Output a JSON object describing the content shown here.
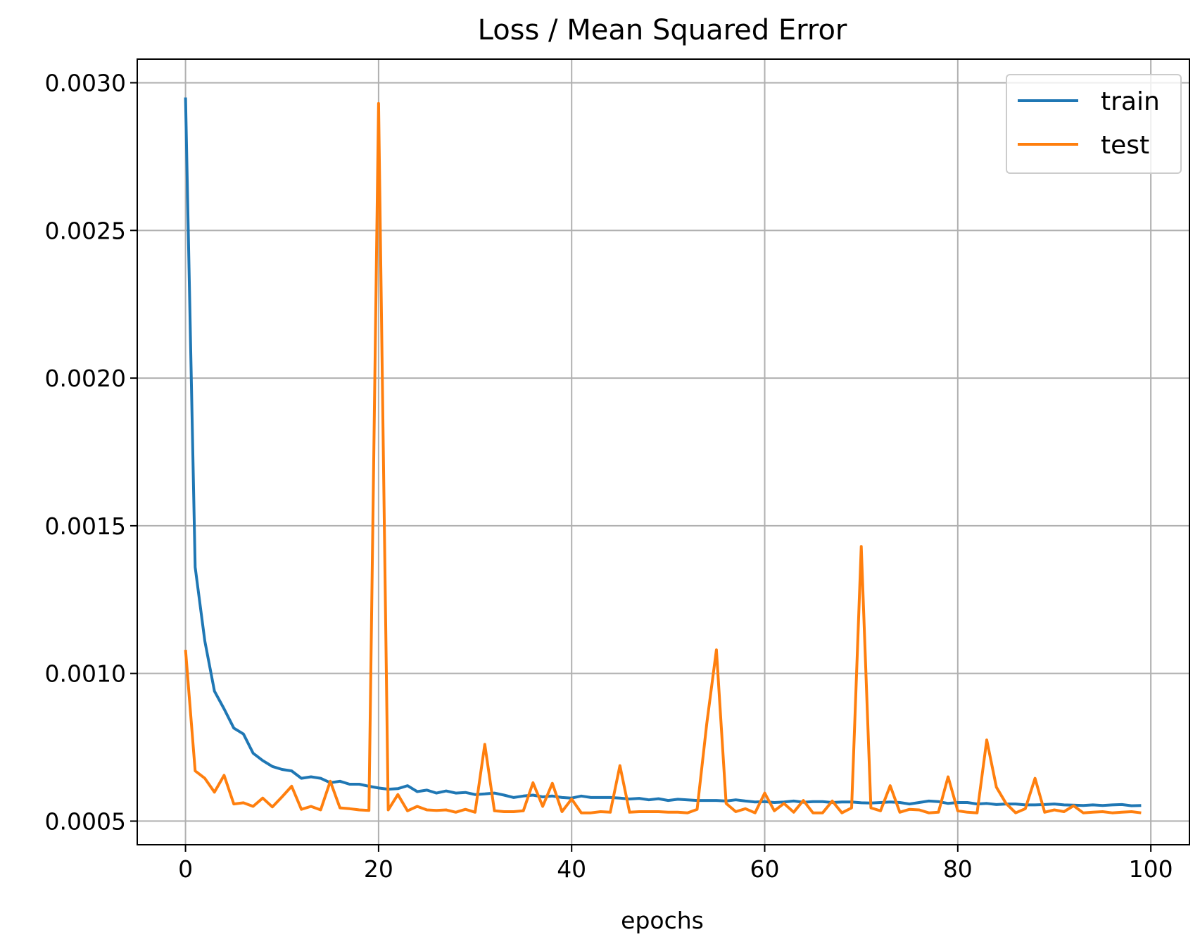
{
  "chart_data": {
    "type": "line",
    "title": "Loss / Mean Squared Error",
    "xlabel": "epochs",
    "ylabel": "",
    "xlim": [
      -5,
      104
    ],
    "ylim": [
      0.00042,
      0.00308
    ],
    "xticks": [
      0,
      20,
      40,
      60,
      80,
      100
    ],
    "xtick_labels": [
      "0",
      "20",
      "40",
      "60",
      "80",
      "100"
    ],
    "yticks": [
      0.0005,
      0.001,
      0.0015,
      0.002,
      0.0025,
      0.003
    ],
    "ytick_labels": [
      "0.0005",
      "0.0010",
      "0.0015",
      "0.0020",
      "0.0025",
      "0.0030"
    ],
    "grid": true,
    "legend_position": "top-right",
    "series": [
      {
        "name": "train",
        "color": "#1f77b4",
        "values": [
          0.00295,
          0.00136,
          0.00111,
          0.00094,
          0.00088,
          0.000815,
          0.000795,
          0.00073,
          0.000705,
          0.000685,
          0.000675,
          0.00067,
          0.000645,
          0.00065,
          0.000645,
          0.00063,
          0.000635,
          0.000625,
          0.000625,
          0.000618,
          0.000612,
          0.000608,
          0.00061,
          0.00062,
          0.0006,
          0.000605,
          0.000595,
          0.000602,
          0.000595,
          0.000597,
          0.00059,
          0.000592,
          0.000595,
          0.000588,
          0.00058,
          0.000585,
          0.000588,
          0.000582,
          0.000585,
          0.00058,
          0.000578,
          0.000585,
          0.00058,
          0.00058,
          0.00058,
          0.000578,
          0.000575,
          0.000577,
          0.000572,
          0.000576,
          0.00057,
          0.000574,
          0.000572,
          0.00057,
          0.00057,
          0.00057,
          0.000568,
          0.000572,
          0.000568,
          0.000565,
          0.000566,
          0.000563,
          0.000565,
          0.000568,
          0.000564,
          0.000566,
          0.000566,
          0.000563,
          0.000565,
          0.000565,
          0.000562,
          0.000561,
          0.000563,
          0.000565,
          0.000563,
          0.000558,
          0.000563,
          0.000568,
          0.000566,
          0.00056,
          0.000563,
          0.000563,
          0.000558,
          0.00056,
          0.000556,
          0.000558,
          0.000558,
          0.000555,
          0.000555,
          0.000556,
          0.000558,
          0.000555,
          0.000554,
          0.000553,
          0.000555,
          0.000553,
          0.000555,
          0.000556,
          0.000552,
          0.000553
        ]
      },
      {
        "name": "test",
        "color": "#ff7f0e",
        "values": [
          0.00108,
          0.00067,
          0.000645,
          0.000598,
          0.000655,
          0.000558,
          0.000562,
          0.00055,
          0.000578,
          0.000548,
          0.000582,
          0.000618,
          0.00054,
          0.00055,
          0.000538,
          0.000635,
          0.000545,
          0.000542,
          0.000538,
          0.000536,
          0.00293,
          0.000538,
          0.00059,
          0.000535,
          0.00055,
          0.000538,
          0.000536,
          0.000538,
          0.00053,
          0.00054,
          0.00053,
          0.00076,
          0.000535,
          0.000532,
          0.000532,
          0.000535,
          0.00063,
          0.00055,
          0.000628,
          0.000532,
          0.000575,
          0.000528,
          0.000528,
          0.000532,
          0.00053,
          0.000688,
          0.00053,
          0.000532,
          0.000532,
          0.000532,
          0.00053,
          0.00053,
          0.000528,
          0.00054,
          0.00083,
          0.00108,
          0.00056,
          0.000532,
          0.000542,
          0.000528,
          0.000595,
          0.000535,
          0.00056,
          0.00053,
          0.00057,
          0.000528,
          0.000528,
          0.000568,
          0.000528,
          0.000545,
          0.00143,
          0.000545,
          0.000535,
          0.00062,
          0.00053,
          0.00054,
          0.000538,
          0.000528,
          0.00053,
          0.00065,
          0.000535,
          0.00053,
          0.000528,
          0.000775,
          0.000615,
          0.00056,
          0.000528,
          0.000542,
          0.000645,
          0.00053,
          0.000538,
          0.000532,
          0.000552,
          0.000528,
          0.00053,
          0.000532,
          0.000528,
          0.00053,
          0.000532,
          0.000528
        ]
      }
    ]
  }
}
